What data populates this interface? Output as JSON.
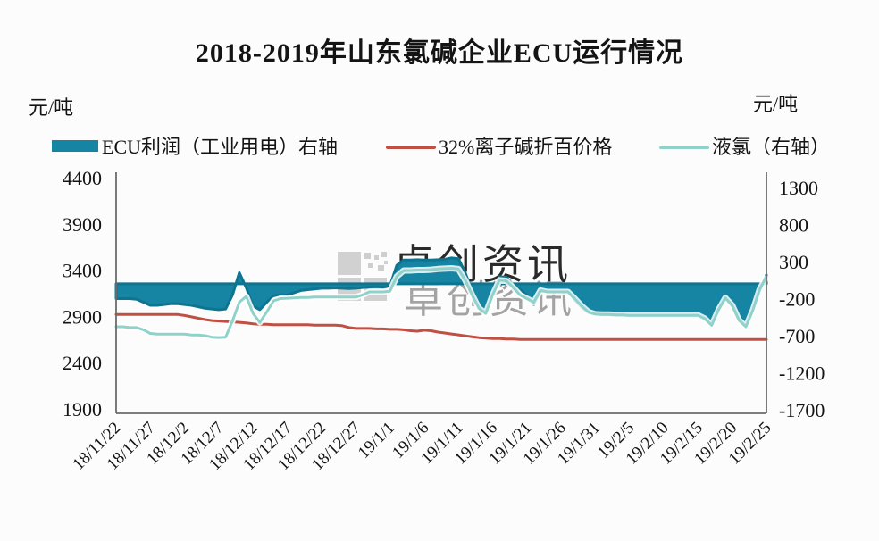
{
  "title": "2018-2019年山东氯碱企业ECU运行情况",
  "axis_units": {
    "left": "元/吨",
    "right": "元/吨"
  },
  "watermark": {
    "logo": "grid-squares-icon",
    "text": "卓创资讯"
  },
  "legend": [
    {
      "label": "ECU利润（工业用电）右轴",
      "type": "area",
      "color": "#1585a3"
    },
    {
      "label": "32%离子碱折百价格",
      "type": "line",
      "color": "#c05044"
    },
    {
      "label": "液氯（右轴）",
      "type": "line",
      "color": "#8fd2ca"
    }
  ],
  "chart_data": {
    "type": "line",
    "title": "2018-2019年山东氯碱企业ECU运行情况",
    "x_tick_labels": [
      "18/11/22",
      "18/11/27",
      "18/12/2",
      "18/12/7",
      "18/12/12",
      "18/12/17",
      "18/12/22",
      "18/12/27",
      "19/1/1",
      "19/1/6",
      "19/1/11",
      "19/1/16",
      "19/1/21",
      "19/1/26",
      "19/1/31",
      "19/2/5",
      "19/2/10",
      "19/2/15",
      "19/2/20",
      "19/2/25"
    ],
    "x_tick_interval_days": 5,
    "left_axis": {
      "label": "元/吨",
      "ticks": [
        4400,
        3900,
        3400,
        2900,
        2400,
        1900
      ],
      "range": [
        1900,
        4400
      ]
    },
    "right_axis": {
      "label": "元/吨",
      "ticks": [
        1300,
        800,
        300,
        -200,
        -700,
        -1200,
        -1700
      ],
      "range": [
        -1700,
        1300
      ]
    },
    "grid": false,
    "legend_position": "top",
    "series": [
      {
        "name": "ECU利润（工业用电）右轴",
        "axis": "right",
        "type": "area",
        "baseline": 0,
        "color": "#1585a3",
        "stroke": "#0f7490",
        "values": [
          -200,
          -200,
          -200,
          -210,
          -250,
          -290,
          -290,
          -280,
          -270,
          -270,
          -280,
          -290,
          -310,
          -330,
          -340,
          -350,
          -340,
          -150,
          150,
          -50,
          -300,
          -350,
          -250,
          -160,
          -150,
          -150,
          -120,
          -90,
          -80,
          -70,
          -60,
          -60,
          -55,
          -60,
          -65,
          -60,
          -50,
          -45,
          -40,
          -45,
          -30,
          250,
          320,
          320,
          325,
          320,
          320,
          325,
          330,
          350,
          340,
          150,
          -100,
          -300,
          -380,
          -120,
          95,
          90,
          -20,
          -80,
          -150,
          -280,
          -90,
          -100,
          -100,
          -100,
          -100,
          -220,
          -320,
          -390,
          -410,
          -420,
          -420,
          -425,
          -425,
          -430,
          -430,
          -430,
          -430,
          -430,
          -430,
          -430,
          -430,
          -430,
          -430,
          -430,
          -480,
          -550,
          -350,
          -200,
          -300,
          -500,
          -570,
          -350,
          -100,
          120
        ]
      },
      {
        "name": "32%离子碱折百价格",
        "axis": "left",
        "type": "line",
        "color": "#c05044",
        "values": [
          2920,
          2920,
          2920,
          2920,
          2920,
          2920,
          2920,
          2920,
          2920,
          2920,
          2910,
          2895,
          2880,
          2865,
          2855,
          2850,
          2845,
          2840,
          2835,
          2830,
          2820,
          2815,
          2815,
          2810,
          2810,
          2810,
          2810,
          2810,
          2810,
          2805,
          2805,
          2805,
          2805,
          2800,
          2780,
          2770,
          2770,
          2770,
          2765,
          2765,
          2760,
          2760,
          2755,
          2745,
          2740,
          2750,
          2745,
          2730,
          2720,
          2710,
          2700,
          2690,
          2680,
          2670,
          2665,
          2660,
          2660,
          2655,
          2655,
          2650,
          2650,
          2650,
          2650,
          2650,
          2650,
          2650,
          2650,
          2650,
          2650,
          2650,
          2650,
          2650,
          2650,
          2650,
          2650,
          2650,
          2650,
          2650,
          2650,
          2650,
          2650,
          2650,
          2650,
          2650,
          2650,
          2650,
          2650,
          2650,
          2650,
          2650,
          2650,
          2650,
          2650,
          2650,
          2650,
          2650
        ]
      },
      {
        "name": "液氯（右轴）",
        "axis": "right",
        "type": "line",
        "color": "#8fd2ca",
        "values": [
          -580,
          -580,
          -590,
          -590,
          -620,
          -670,
          -680,
          -680,
          -680,
          -680,
          -680,
          -690,
          -690,
          -700,
          -720,
          -725,
          -720,
          -500,
          -250,
          -170,
          -400,
          -520,
          -380,
          -230,
          -200,
          -195,
          -190,
          -185,
          -185,
          -180,
          -180,
          -180,
          -180,
          -180,
          -180,
          -180,
          -150,
          -110,
          -110,
          -110,
          -100,
          100,
          180,
          180,
          185,
          185,
          190,
          200,
          205,
          210,
          200,
          50,
          -150,
          -330,
          -400,
          -150,
          50,
          40,
          -50,
          -150,
          -200,
          -250,
          -90,
          -110,
          -110,
          -110,
          -110,
          -200,
          -300,
          -380,
          -410,
          -415,
          -415,
          -420,
          -420,
          -425,
          -425,
          -425,
          -425,
          -425,
          -425,
          -425,
          -425,
          -425,
          -425,
          -425,
          -470,
          -560,
          -350,
          -190,
          -290,
          -490,
          -580,
          -360,
          -80,
          100
        ]
      }
    ]
  }
}
